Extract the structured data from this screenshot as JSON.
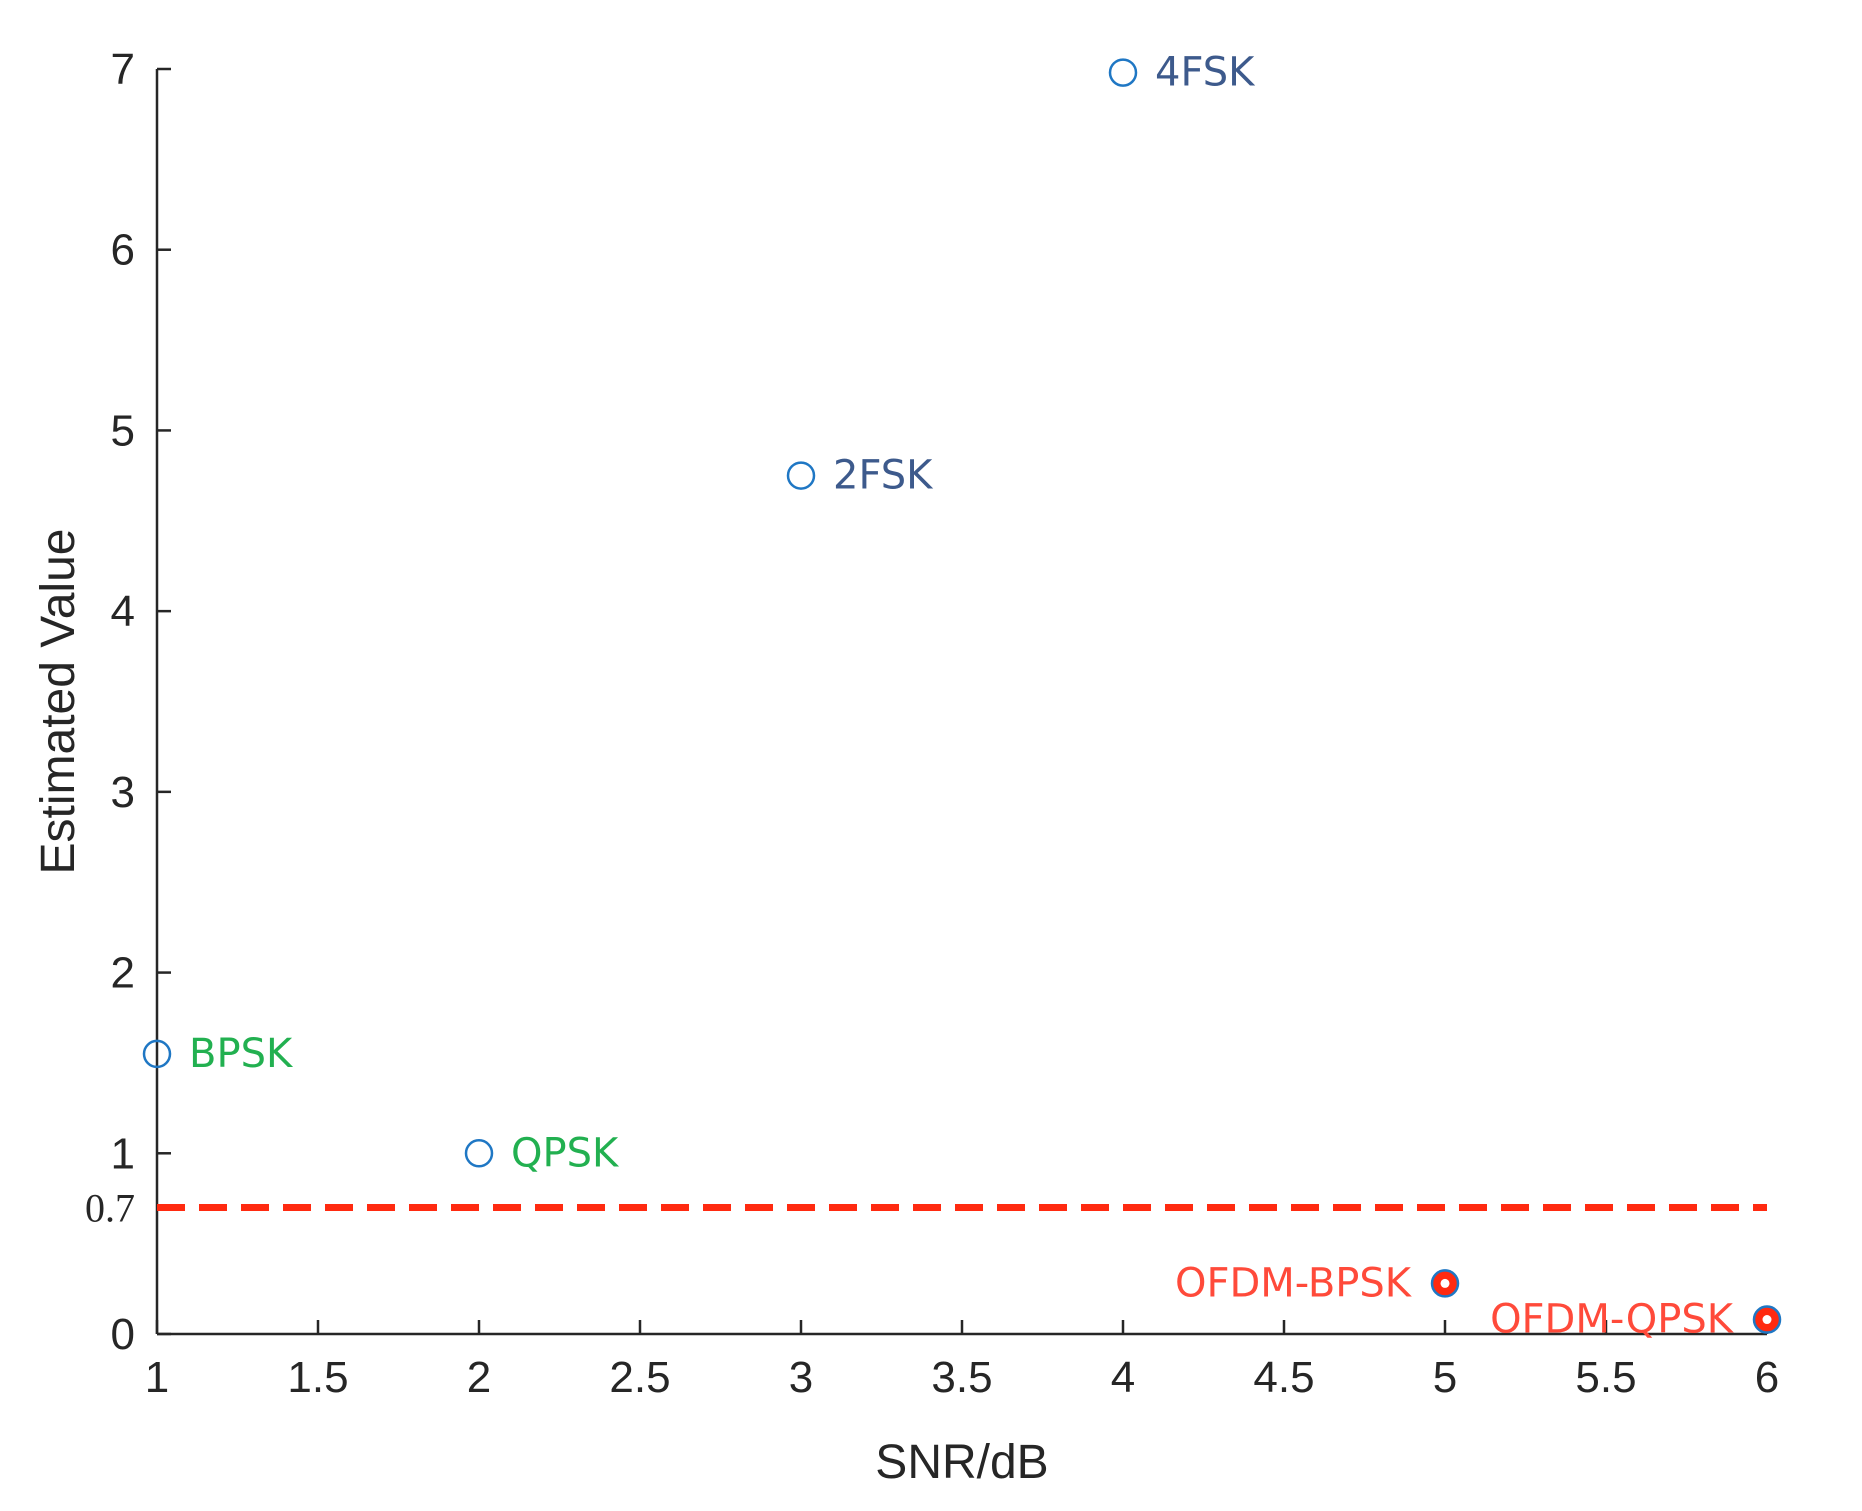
{
  "chart_data": {
    "type": "scatter",
    "xlabel": "SNR/dB",
    "ylabel": "Estimated Value",
    "xlim": [
      1,
      6
    ],
    "ylim": [
      0,
      7
    ],
    "xticks": [
      "1",
      "1.5",
      "2",
      "2.5",
      "3",
      "3.5",
      "4",
      "4.5",
      "5",
      "5.5",
      "6"
    ],
    "yticks": [
      "0",
      "1",
      "2",
      "3",
      "4",
      "5",
      "6",
      "7"
    ],
    "grid": false,
    "points": [
      {
        "label": "BPSK",
        "x": 1,
        "y": 1.55,
        "label_color": "#22b050",
        "filled": false
      },
      {
        "label": "QPSK",
        "x": 2,
        "y": 1.0,
        "label_color": "#22b050",
        "filled": false
      },
      {
        "label": "2FSK",
        "x": 3,
        "y": 4.75,
        "label_color": "#3d5a8c",
        "filled": false
      },
      {
        "label": "4FSK",
        "x": 4,
        "y": 6.98,
        "label_color": "#3d5a8c",
        "filled": false
      },
      {
        "label": "OFDM-BPSK",
        "x": 5,
        "y": 0.28,
        "label_color": "#ff4a3a",
        "filled": true
      },
      {
        "label": "OFDM-QPSK",
        "x": 6,
        "y": 0.08,
        "label_color": "#ff4a3a",
        "filled": true
      }
    ],
    "threshold": {
      "value": 0.7,
      "label": "0.7",
      "color": "#ff2a10",
      "style": "dashed"
    },
    "marker_color": "#1f77c4"
  }
}
